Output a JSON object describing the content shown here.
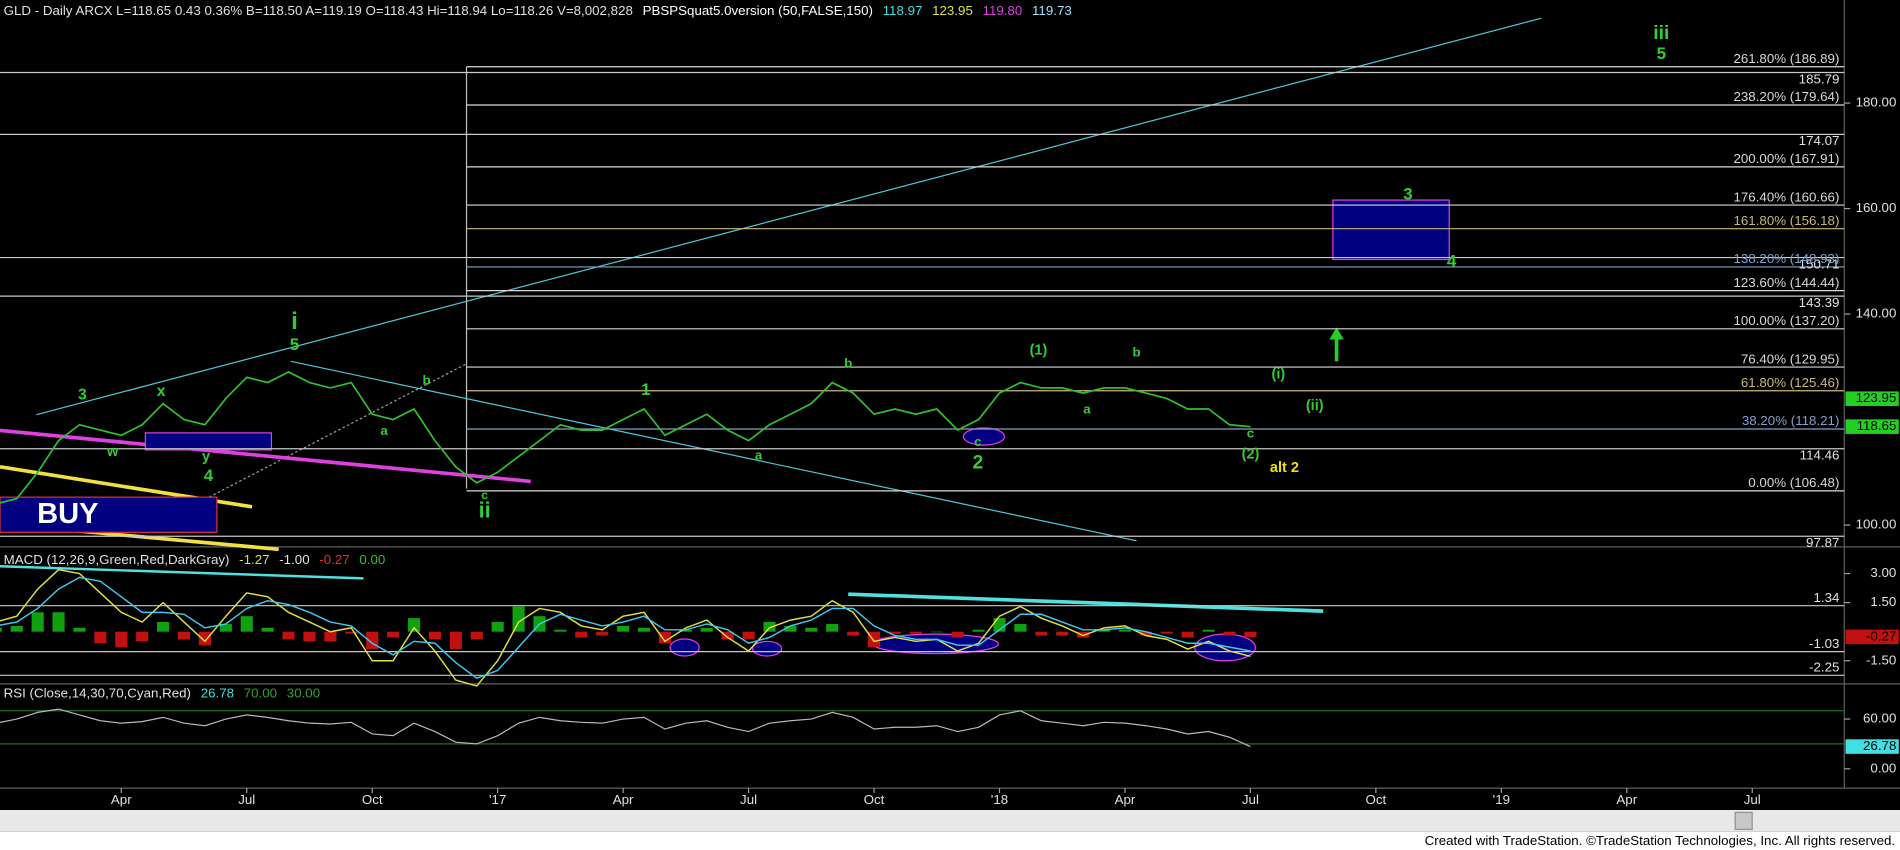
{
  "chart_data": [
    {
      "type": "line",
      "header": [
        {
          "text": "GLD - Daily  ARCX  L=118.65  0.43  0.36%  B=118.50  A=119.19  O=118.43  Hi=118.94  Lo=118.26  V=8,002,828",
          "color": "#e0e0e0"
        },
        {
          "text": "PBSPSquat5.0version (50,FALSE,150)",
          "color": "#ffffff"
        },
        {
          "text": "118.97",
          "color": "#40e0e0"
        },
        {
          "text": "123.95",
          "color": "#e0e040"
        },
        {
          "text": "119.80",
          "color": "#e040e0"
        },
        {
          "text": "119.73",
          "color": "#a0e0ff"
        }
      ],
      "x": [
        0,
        0.5,
        1,
        1.5,
        2,
        2.5,
        3,
        3.5,
        4,
        4.5,
        5,
        5.5,
        6,
        6.5,
        7,
        7.5,
        8,
        8.5,
        9,
        9.5,
        10,
        10.5,
        11,
        11.5,
        12,
        12.5,
        13,
        13.5,
        14,
        14.5,
        15,
        15.5,
        16,
        16.5,
        17,
        17.5,
        18,
        18.5,
        19,
        19.5,
        20,
        20.5,
        21,
        21.5,
        22,
        22.5,
        23,
        23.5,
        24,
        24.5,
        25,
        25.5,
        26,
        26.5,
        27,
        27.5,
        28,
        28.5,
        29,
        29.5,
        30
      ],
      "values": [
        104,
        105,
        110,
        116,
        119,
        118,
        117,
        119,
        123,
        120,
        119,
        124,
        128,
        127,
        129,
        127,
        126,
        127,
        121,
        120,
        122,
        116,
        111,
        108,
        110,
        113,
        116,
        119,
        118,
        118,
        120,
        122,
        117,
        119,
        121,
        118,
        116,
        119,
        121,
        123,
        127,
        125,
        121,
        122,
        121,
        122,
        118,
        120,
        125,
        127,
        126,
        126,
        125,
        126,
        126,
        125,
        124,
        122,
        122,
        119,
        118.65
      ],
      "color": "#2fbf2f",
      "xlim": [
        0.1,
        44.2
      ],
      "xticks": [
        {
          "value": 3,
          "label": "Apr"
        },
        {
          "value": 6,
          "label": "Jul"
        },
        {
          "value": 9,
          "label": "Oct"
        },
        {
          "value": 12,
          "label": "'17"
        },
        {
          "value": 15,
          "label": "Apr"
        },
        {
          "value": 18,
          "label": "Jul"
        },
        {
          "value": 21,
          "label": "Oct"
        },
        {
          "value": 24,
          "label": "'18"
        },
        {
          "value": 27,
          "label": "Apr"
        },
        {
          "value": 30,
          "label": "Jul"
        },
        {
          "value": 33,
          "label": "Oct"
        },
        {
          "value": 36,
          "label": "'19"
        },
        {
          "value": 39,
          "label": "Apr"
        },
        {
          "value": 42,
          "label": "Jul"
        }
      ],
      "ylim": [
        96.09,
        199.54
      ],
      "yticks": [
        {
          "value": 100,
          "label": "100.00"
        },
        {
          "value": 140,
          "label": "140.00"
        },
        {
          "value": 160,
          "label": "160.00"
        },
        {
          "value": 180,
          "label": "180.00"
        }
      ],
      "levels": [
        185.79,
        174.07,
        150.71,
        143.39,
        114.46,
        97.87
      ],
      "fib": [
        {
          "value": 186.89,
          "label": "261.80% (186.89)",
          "color": "#d8d8d8"
        },
        {
          "value": 179.64,
          "label": "238.20% (179.64)",
          "color": "#d8d8d8"
        },
        {
          "value": 167.91,
          "label": "200.00% (167.91)",
          "color": "#d8d8d8"
        },
        {
          "value": 160.66,
          "label": "176.40% (160.66)",
          "color": "#d8d8d8"
        },
        {
          "value": 156.18,
          "label": "161.80% (156.18)",
          "color": "#c8b878"
        },
        {
          "value": 148.93,
          "label": "138.20% (148.93)",
          "color": "#7fa0c8"
        },
        {
          "value": 144.44,
          "label": "123.60% (144.44)",
          "color": "#d8d8d8"
        },
        {
          "value": 137.2,
          "label": "100.00% (137.20)",
          "color": "#d8d8d8"
        },
        {
          "value": 129.95,
          "label": "76.40% (129.95)",
          "color": "#d8d8d8"
        },
        {
          "value": 125.46,
          "label": "61.80% (125.46)",
          "color": "#c8b878"
        },
        {
          "value": 118.21,
          "label": "38.20% (118.21)",
          "color": "#7fa0c8"
        },
        {
          "value": 106.48,
          "label": "0.00% (106.48)",
          "color": "#d8d8d8"
        }
      ],
      "last_labels": [
        {
          "value": 123.95,
          "color": "#22d022"
        },
        {
          "value": 118.65,
          "color": "#22d022"
        }
      ],
      "annotations": [
        {
          "text": "3",
          "color": "#33cc33"
        },
        {
          "text": "x",
          "color": "#33cc33"
        },
        {
          "text": "w",
          "color": "#33cc33"
        },
        {
          "text": "y",
          "color": "#33cc33"
        },
        {
          "text": "4",
          "color": "#33cc33"
        },
        {
          "text": "i",
          "color": "#33cc33"
        },
        {
          "text": "5",
          "color": "#33cc33"
        },
        {
          "text": "b",
          "color": "#33cc33"
        },
        {
          "text": "a",
          "color": "#33cc33"
        },
        {
          "text": "c",
          "color": "#33cc33"
        },
        {
          "text": "ii",
          "color": "#33cc33"
        },
        {
          "text": "1",
          "color": "#33cc33"
        },
        {
          "text": "a",
          "color": "#33cc33"
        },
        {
          "text": "b",
          "color": "#33cc33"
        },
        {
          "text": "c",
          "color": "#33cc33"
        },
        {
          "text": "2",
          "color": "#33cc33"
        },
        {
          "text": "(1)",
          "color": "#33cc33"
        },
        {
          "text": "b",
          "color": "#33cc33"
        },
        {
          "text": "a",
          "color": "#33cc33"
        },
        {
          "text": "(i)",
          "color": "#33cc33"
        },
        {
          "text": "(ii)",
          "color": "#33cc33"
        },
        {
          "text": "c",
          "color": "#33cc33"
        },
        {
          "text": "(2)",
          "color": "#33cc33"
        },
        {
          "text": "alt 2",
          "color": "#f0e000"
        },
        {
          "text": "3",
          "color": "#33cc33"
        },
        {
          "text": "4",
          "color": "#33cc33"
        },
        {
          "text": "iii",
          "color": "#33cc33"
        },
        {
          "text": "5",
          "color": "#33cc33"
        }
      ],
      "buy_label": "BUY"
    },
    {
      "type": "line",
      "title": "MACD (12,26,9,Green,Red,DarkGray)",
      "header_values": [
        {
          "text": "-1.27",
          "color": "#e0e040"
        },
        {
          "text": "-1.00",
          "color": "#e0e0e0"
        },
        {
          "text": "-0.27",
          "color": "#e03030"
        },
        {
          "text": "0.00",
          "color": "#30c030"
        }
      ],
      "series": [
        {
          "kind": "line",
          "color": "#e0e040",
          "values": [
            0.5,
            0.8,
            2.2,
            3.2,
            3.0,
            2.0,
            1.0,
            0.5,
            1.5,
            0.5,
            -0.5,
            0.8,
            2.0,
            1.8,
            1.0,
            0.5,
            0,
            0.2,
            -1.5,
            -1.5,
            0.2,
            -1.0,
            -2.5,
            -2.8,
            -1.5,
            0.5,
            1.2,
            1.0,
            0.3,
            0.1,
            0.8,
            1.0,
            -0.5,
            0.2,
            0.6,
            -0.3,
            -1.0,
            0.2,
            0.6,
            0.8,
            1.6,
            1.0,
            -0.5,
            -0.3,
            -0.5,
            -0.4,
            -1.0,
            -0.6,
            0.8,
            1.3,
            0.7,
            0.3,
            -0.2,
            0.2,
            0.3,
            -0.2,
            -0.4,
            -0.9,
            -0.5,
            -1.0,
            -1.27
          ]
        },
        {
          "kind": "line",
          "color": "#40c8f0",
          "values": [
            0.3,
            0.5,
            1.2,
            2.2,
            2.8,
            2.6,
            1.8,
            1.0,
            1.0,
            0.9,
            0.2,
            0.4,
            1.2,
            1.6,
            1.4,
            1.0,
            0.5,
            0.3,
            -0.6,
            -1.2,
            -0.5,
            -0.6,
            -1.6,
            -2.4,
            -2.0,
            -0.8,
            0.4,
            0.9,
            0.6,
            0.3,
            0.5,
            0.8,
            0.1,
            0.1,
            0.4,
            0.1,
            -0.6,
            -0.3,
            0.3,
            0.6,
            1.2,
            1.2,
            0.3,
            -0.2,
            -0.4,
            -0.4,
            -0.7,
            -0.7,
            0.1,
            0.9,
            0.9,
            0.5,
            0.1,
            0.1,
            0.2,
            0.0,
            -0.3,
            -0.6,
            -0.6,
            -0.8,
            -1.0
          ]
        },
        {
          "kind": "bar",
          "color": "#10a010",
          "color_down": "#c01010",
          "values": [
            0.2,
            0.3,
            1.0,
            1.0,
            0.2,
            -0.6,
            -0.8,
            -0.5,
            0.5,
            -0.4,
            -0.7,
            0.4,
            0.8,
            0.2,
            -0.4,
            -0.5,
            -0.5,
            -0.1,
            -0.9,
            -0.3,
            0.7,
            -0.4,
            -0.9,
            -0.4,
            0.5,
            1.3,
            0.8,
            0.1,
            -0.3,
            -0.2,
            0.3,
            0.2,
            -0.6,
            0.1,
            0.2,
            -0.4,
            -0.4,
            0.5,
            0.3,
            0.2,
            0.4,
            -0.2,
            -0.8,
            -0.1,
            -0.1,
            0,
            -0.3,
            0.1,
            0.7,
            0.4,
            -0.2,
            -0.2,
            -0.3,
            0.1,
            0.1,
            -0.2,
            -0.1,
            -0.3,
            0.1,
            -0.2,
            -0.27
          ]
        }
      ],
      "ylim": [
        -2.63,
        4.25
      ],
      "yticks": [
        {
          "value": 3,
          "label": "3.00"
        },
        {
          "value": 1.5,
          "label": "1.50"
        },
        {
          "value": -1.5,
          "label": "-1.50"
        }
      ],
      "levels": [
        1.34,
        -1.03,
        -2.25
      ]
    },
    {
      "type": "line",
      "title": "RSI (Close,14,30,70,Cyan,Red)",
      "header_values": [
        {
          "text": "26.78",
          "color": "#40e0e0"
        },
        {
          "text": "70.00",
          "color": "#30a030"
        },
        {
          "text": "30.00",
          "color": "#30a030"
        }
      ],
      "color": "#b8b8b8",
      "values": [
        55,
        60,
        68,
        72,
        65,
        58,
        55,
        57,
        62,
        55,
        52,
        60,
        65,
        62,
        58,
        55,
        54,
        56,
        42,
        40,
        55,
        45,
        32,
        30,
        40,
        55,
        62,
        58,
        56,
        55,
        60,
        62,
        48,
        55,
        58,
        50,
        45,
        55,
        58,
        60,
        68,
        62,
        48,
        50,
        50,
        52,
        45,
        50,
        65,
        70,
        58,
        55,
        52,
        56,
        55,
        52,
        48,
        42,
        45,
        38,
        26.78
      ],
      "ylim": [
        -23.4,
        101
      ],
      "yticks": [
        {
          "value": 60,
          "label": "60.00"
        },
        {
          "value": 0,
          "label": "0.00"
        }
      ],
      "levels": [
        70,
        30
      ],
      "level_color": "#1f6f1f"
    }
  ],
  "footer": "Created with TradeStation. ©TradeStation Technologies, Inc. All rights reserved."
}
